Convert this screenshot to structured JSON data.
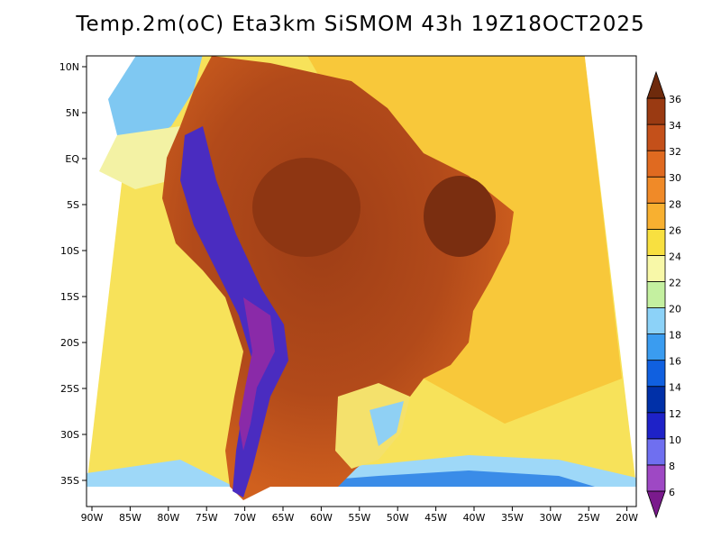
{
  "title": "Temp.2m(oC) Eta3km SiSMOM 43h 19Z18OCT2025",
  "map": {
    "lat_labels": [
      "10N",
      "5N",
      "EQ",
      "5S",
      "10S",
      "15S",
      "20S",
      "25S",
      "30S",
      "35S"
    ],
    "lon_labels": [
      "90W",
      "85W",
      "80W",
      "75W",
      "70W",
      "65W",
      "60W",
      "55W",
      "50W",
      "45W",
      "40W",
      "35W",
      "30W",
      "25W",
      "20W"
    ],
    "colors": {
      "ocean_warm": "#f6dc3c",
      "ocean_mild": "#f9f07c",
      "land_hot": "#c8561e",
      "land_very_hot": "#9e3e16",
      "coast": "#000000"
    }
  },
  "colorbar": {
    "labels": [
      "6",
      "8",
      "10",
      "12",
      "14",
      "16",
      "18",
      "20",
      "22",
      "24",
      "26",
      "28",
      "30",
      "32",
      "34",
      "36"
    ],
    "colors": [
      "#7a1a8c",
      "#9e48c4",
      "#6f6ff0",
      "#1e22c8",
      "#0030a8",
      "#1060e0",
      "#3a9cf0",
      "#8cd2f8",
      "#c4f0a0",
      "#f8f8a8",
      "#f8e040",
      "#f8b030",
      "#f08a28",
      "#e06a20",
      "#c4501a",
      "#9a3a12",
      "#6e2a0c"
    ]
  }
}
